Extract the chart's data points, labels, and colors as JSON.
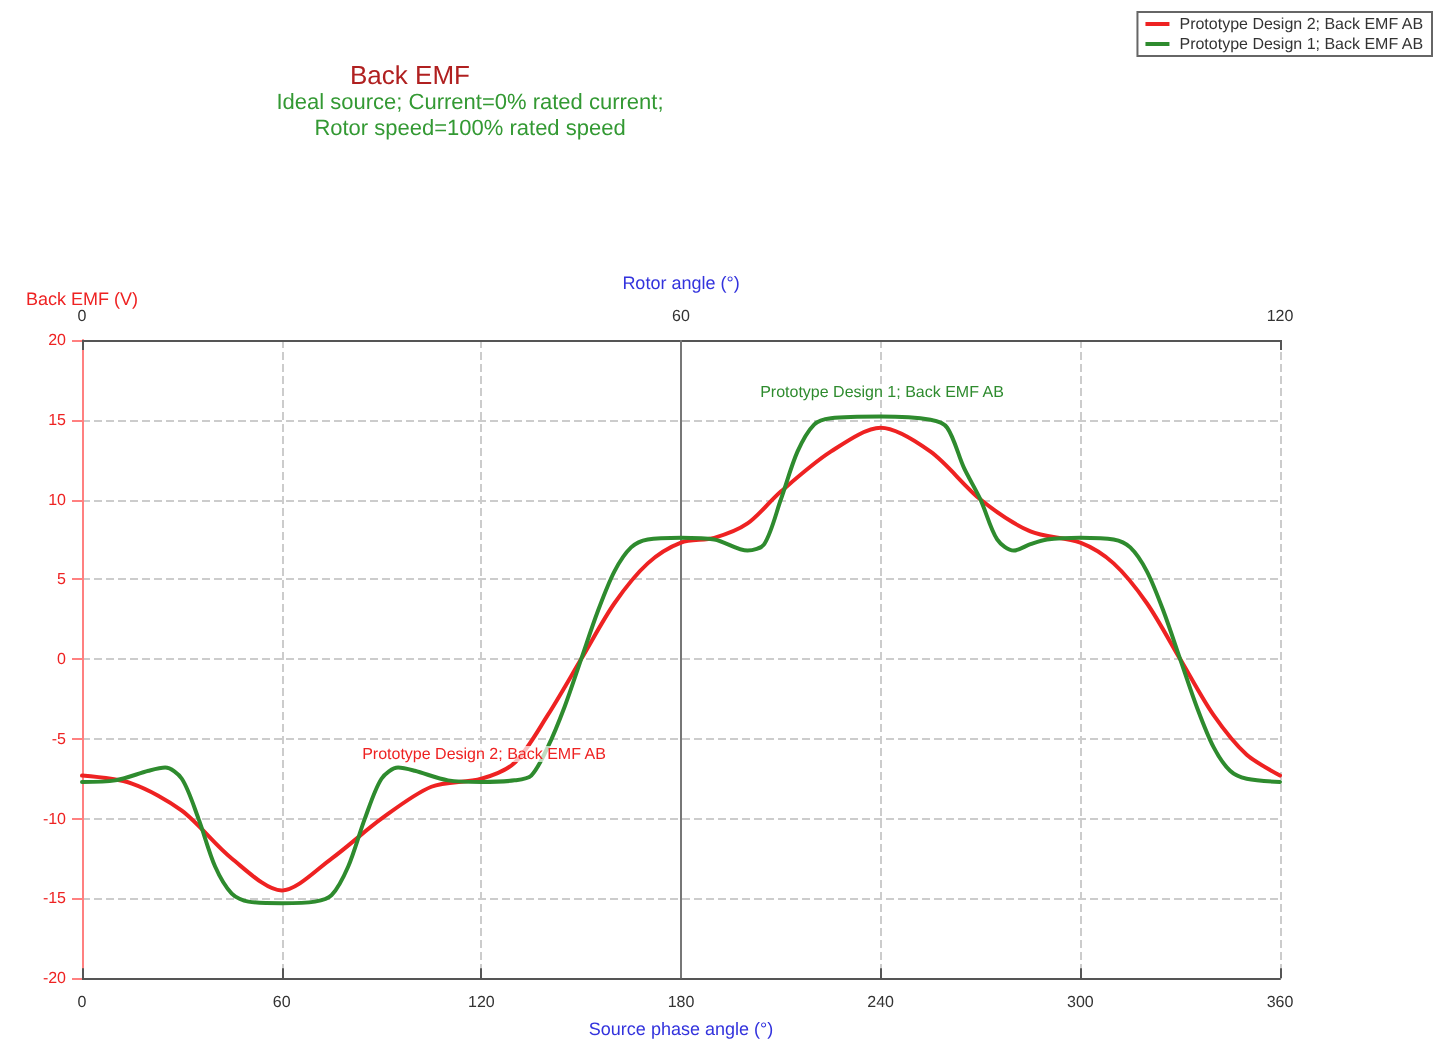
{
  "chart_data": {
    "type": "line",
    "title": "Back EMF",
    "subtitle": "Ideal source; Current=0% rated current;\nRotor speed=100% rated speed",
    "xlabel": "Source phase angle (°)",
    "ylabel": "Back EMF (V)",
    "x2label": "Rotor angle (°)",
    "xlim": [
      0,
      360
    ],
    "xticks": [
      0,
      60,
      120,
      180,
      240,
      300,
      360
    ],
    "x2lim": [
      0,
      120
    ],
    "x2ticks": [
      0,
      60,
      120
    ],
    "ylim": [
      -20,
      20
    ],
    "yticks": [
      -20,
      -15,
      -10,
      -5,
      0,
      5,
      10,
      15,
      20
    ],
    "grid": true,
    "legend": "top right",
    "marker": "none",
    "line_style": "solid",
    "annotations": [
      "Prototype Design 2; Back EMF AB",
      "Prototype Design 1; Back EMF AB"
    ],
    "ref_lines": [
      {
        "axis": "x",
        "value": 180,
        "color": "#777777"
      }
    ],
    "series": [
      {
        "name": "Prototype Design 2; Back EMF AB",
        "color": "#ee2222",
        "x": [
          0,
          15,
          30,
          45,
          60,
          75,
          90,
          105,
          120,
          130,
          140,
          150,
          160,
          170,
          180,
          190,
          200,
          210,
          225,
          240,
          255,
          270,
          285,
          300,
          310,
          320,
          330,
          340,
          350,
          360
        ],
        "values": [
          -7.3,
          -7.8,
          -9.5,
          -12.5,
          -14.5,
          -12.5,
          -10,
          -8,
          -7.5,
          -6.5,
          -3.5,
          0,
          3.5,
          6,
          7.3,
          7.6,
          8.5,
          10.5,
          13,
          14.5,
          13,
          10,
          8,
          7.3,
          6,
          3.5,
          0,
          -3.5,
          -6,
          -7.3
        ]
      },
      {
        "name": "Prototype Design 1; Back EMF AB",
        "color": "#2e8b2e",
        "x": [
          0,
          10,
          20,
          25,
          30,
          35,
          40,
          45,
          50,
          60,
          70,
          75,
          80,
          85,
          90,
          95,
          100,
          110,
          120,
          130,
          135,
          140,
          145,
          150,
          155,
          160,
          165,
          170,
          180,
          190,
          200,
          205,
          210,
          215,
          220,
          225,
          240,
          255,
          260,
          265,
          270,
          275,
          280,
          285,
          290,
          300,
          310,
          315,
          320,
          325,
          330,
          335,
          340,
          345,
          350,
          360
        ],
        "values": [
          -7.7,
          -7.6,
          -7,
          -6.8,
          -7.5,
          -10,
          -13,
          -14.7,
          -15.2,
          -15.3,
          -15.2,
          -14.8,
          -13,
          -10,
          -7.5,
          -6.8,
          -7,
          -7.6,
          -7.7,
          -7.6,
          -7.3,
          -5.5,
          -3,
          0,
          3,
          5.5,
          7,
          7.5,
          7.6,
          7.5,
          6.8,
          7.2,
          10,
          13,
          14.7,
          15.1,
          15.2,
          15,
          14.5,
          12,
          10,
          7.5,
          6.8,
          7.2,
          7.5,
          7.6,
          7.5,
          7,
          5.5,
          3,
          0,
          -3,
          -5.5,
          -7,
          -7.5,
          -7.7
        ]
      }
    ]
  }
}
